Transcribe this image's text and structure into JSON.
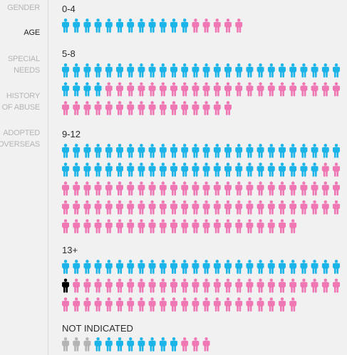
{
  "sidebar": {
    "items": [
      {
        "label": "GENDER",
        "active": false
      },
      {
        "label": "AGE",
        "active": true
      },
      {
        "label": "SPECIAL NEEDS",
        "active": false
      },
      {
        "label": "HISTORY OF ABUSE",
        "active": false
      },
      {
        "label": "ADOPTED OVERSEAS",
        "active": false
      }
    ]
  },
  "colors": {
    "boy": "#1ab4e8",
    "girl": "#ef78b4",
    "other": "#000000",
    "unknown": "#b4b4b4",
    "background": "#f1f1f1"
  },
  "icon": "person-icon",
  "chart_data": {
    "type": "pictograph",
    "groups": [
      {
        "label": "0-4",
        "counts": {
          "boy": 12,
          "girl": 5
        }
      },
      {
        "label": "5-8",
        "counts": {
          "boy": 30,
          "girl": 38
        }
      },
      {
        "label": "9-12",
        "counts": {
          "boy": 50,
          "girl": 76
        }
      },
      {
        "label": "13+",
        "counts": {
          "boy": 26,
          "other": 1,
          "girl": 47
        }
      },
      {
        "label": "NOT INDICATED",
        "counts": {
          "unknown": 3,
          "boy": 8,
          "girl": 3
        }
      }
    ]
  }
}
